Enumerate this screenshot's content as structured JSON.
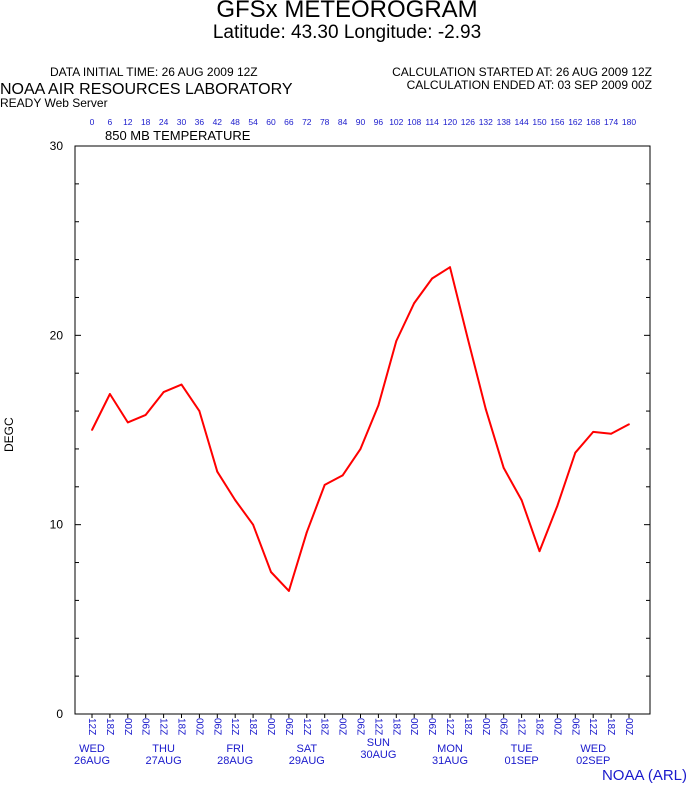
{
  "header": {
    "title": "GFSx METEOROGRAM",
    "location_line": "Latitude: 43.30 Longitude:  -2.93",
    "data_initial_time": "DATA INITIAL TIME: 26 AUG 2009 12Z",
    "calc_started": "CALCULATION STARTED AT: 26 AUG 2009 12Z",
    "calc_ended": "CALCULATION ENDED AT: 03 SEP 2009 00Z",
    "org": "NOAA AIR RESOURCES LABORATORY",
    "server": "READY Web Server",
    "footer": "NOAA (ARL)"
  },
  "colors": {
    "line": "#ff0000",
    "axis_text": "#1a1acc",
    "axes": "#000000"
  },
  "chart_data": {
    "type": "line",
    "title": "850 MB  TEMPERATURE",
    "ylabel": "DEGC",
    "xlabel": "",
    "ylim": [
      0,
      30
    ],
    "yticks": [
      0,
      10,
      20,
      30
    ],
    "forecast_hours": [
      0,
      6,
      12,
      18,
      24,
      30,
      36,
      42,
      48,
      54,
      60,
      66,
      72,
      78,
      84,
      90,
      96,
      102,
      108,
      114,
      120,
      126,
      132,
      138,
      144,
      150,
      156,
      162,
      168,
      174,
      180
    ],
    "x_time_labels": [
      "12Z",
      "18Z",
      "00Z",
      "06Z",
      "12Z",
      "18Z",
      "00Z",
      "06Z",
      "12Z",
      "18Z",
      "00Z",
      "06Z",
      "12Z",
      "18Z",
      "00Z",
      "06Z",
      "12Z",
      "18Z",
      "00Z",
      "06Z",
      "12Z",
      "18Z",
      "00Z",
      "06Z",
      "12Z",
      "18Z",
      "00Z",
      "06Z",
      "12Z",
      "18Z",
      "00Z"
    ],
    "day_labels": [
      {
        "day": "WED",
        "date": "26AUG",
        "at_hour": 0
      },
      {
        "day": "THU",
        "date": "27AUG",
        "at_hour": 24
      },
      {
        "day": "FRI",
        "date": "28AUG",
        "at_hour": 48
      },
      {
        "day": "SAT",
        "date": "29AUG",
        "at_hour": 72
      },
      {
        "day": "SUN",
        "date": "30AUG",
        "at_hour": 96
      },
      {
        "day": "MON",
        "date": "31AUG",
        "at_hour": 120
      },
      {
        "day": "TUE",
        "date": "01SEP",
        "at_hour": 144
      },
      {
        "day": "WED",
        "date": "02SEP",
        "at_hour": 168
      }
    ],
    "series": [
      {
        "values": [
          15.0,
          16.9,
          15.4,
          15.8,
          17.0,
          17.4,
          16.0,
          12.8,
          11.3,
          10.0,
          7.5,
          6.5,
          9.6,
          12.1,
          12.6,
          14.0,
          16.3,
          19.7,
          21.7,
          23.0,
          23.6,
          19.8,
          16.1,
          13.0,
          11.3,
          8.6,
          11.0,
          13.8,
          14.9,
          14.8,
          15.3
        ]
      }
    ],
    "grid": false
  }
}
